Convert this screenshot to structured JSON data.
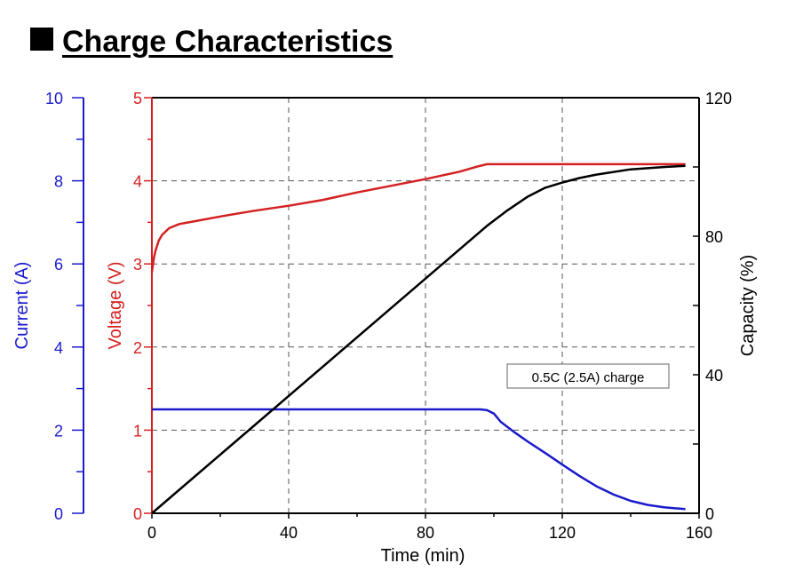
{
  "title": "Charge Characteristics",
  "chart_data": {
    "type": "line",
    "xlabel": "Time (min)",
    "xlim": [
      0,
      160
    ],
    "xticks": [
      0,
      40,
      80,
      120,
      160
    ],
    "axes": {
      "current": {
        "label": "Current (A)",
        "lim": [
          0,
          10
        ],
        "ticks": [
          0,
          2,
          4,
          6,
          8,
          10
        ],
        "color": "#1a1acc"
      },
      "voltage": {
        "label": "Voltage (V)",
        "lim": [
          0,
          5
        ],
        "ticks": [
          0,
          1,
          2,
          3,
          4,
          5
        ],
        "color": "#d42020"
      },
      "capacity": {
        "label": "Capacity (%)",
        "lim": [
          0,
          120
        ],
        "ticks": [
          0,
          40,
          80,
          120
        ],
        "color": "#000000"
      }
    },
    "grid": true,
    "annotation": "0.5C (2.5A) charge",
    "series": [
      {
        "axis": "voltage",
        "color": "#d42020",
        "points": [
          [
            0,
            2.9
          ],
          [
            0.5,
            3.05
          ],
          [
            1,
            3.15
          ],
          [
            2,
            3.28
          ],
          [
            3,
            3.35
          ],
          [
            5,
            3.43
          ],
          [
            8,
            3.48
          ],
          [
            12,
            3.51
          ],
          [
            20,
            3.57
          ],
          [
            30,
            3.64
          ],
          [
            40,
            3.7
          ],
          [
            50,
            3.77
          ],
          [
            60,
            3.86
          ],
          [
            70,
            3.94
          ],
          [
            80,
            4.02
          ],
          [
            90,
            4.11
          ],
          [
            95,
            4.17
          ],
          [
            98,
            4.2
          ],
          [
            100,
            4.2
          ],
          [
            120,
            4.2
          ],
          [
            140,
            4.2
          ],
          [
            156,
            4.2
          ]
        ]
      },
      {
        "axis": "current",
        "color": "#1a1acc",
        "points": [
          [
            0,
            2.5
          ],
          [
            96,
            2.5
          ],
          [
            98,
            2.48
          ],
          [
            100,
            2.4
          ],
          [
            102,
            2.2
          ],
          [
            106,
            1.95
          ],
          [
            110,
            1.72
          ],
          [
            115,
            1.45
          ],
          [
            120,
            1.17
          ],
          [
            125,
            0.9
          ],
          [
            130,
            0.65
          ],
          [
            135,
            0.45
          ],
          [
            140,
            0.3
          ],
          [
            145,
            0.2
          ],
          [
            150,
            0.14
          ],
          [
            156,
            0.1
          ]
        ]
      },
      {
        "axis": "capacity",
        "color": "#000000",
        "points": [
          [
            0,
            0
          ],
          [
            98,
            83
          ],
          [
            104,
            87.5
          ],
          [
            110,
            91.5
          ],
          [
            115,
            94
          ],
          [
            120,
            95.5
          ],
          [
            125,
            96.8
          ],
          [
            130,
            97.8
          ],
          [
            140,
            99.3
          ],
          [
            150,
            100
          ],
          [
            156,
            100.3
          ]
        ]
      }
    ]
  }
}
